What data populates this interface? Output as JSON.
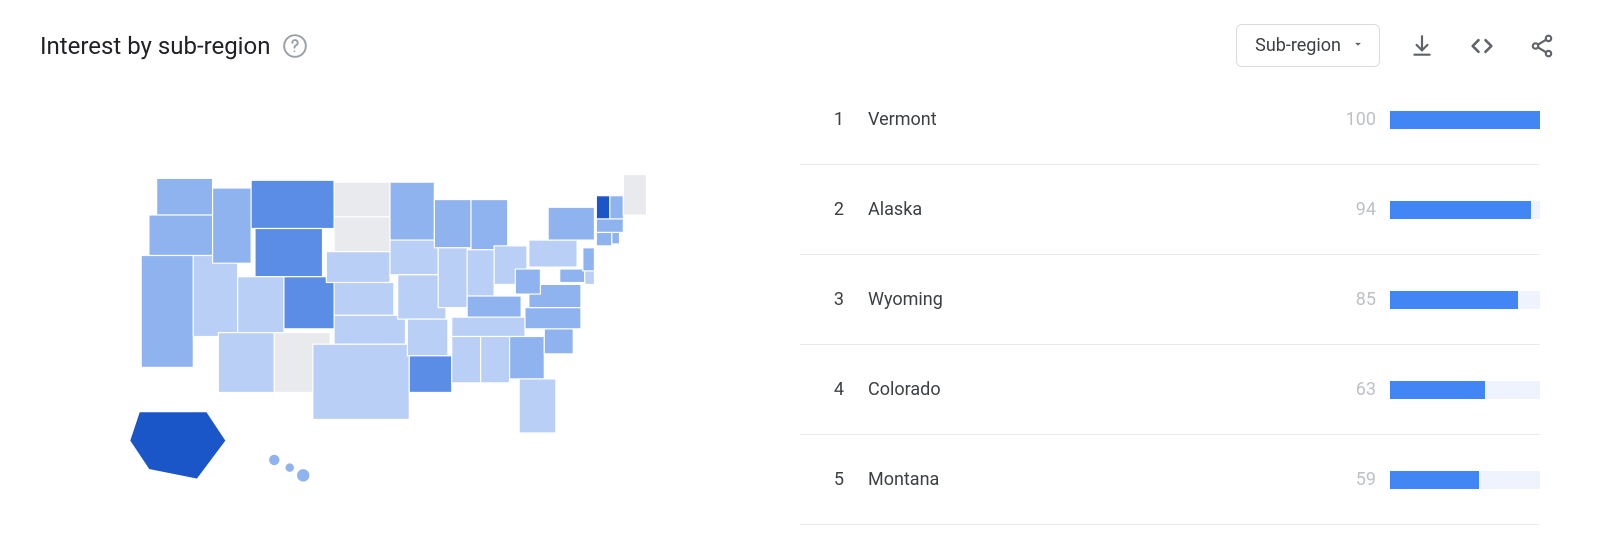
{
  "title": "Interest by sub-region",
  "dropdown": {
    "selected": "Sub-region"
  },
  "bar_max": 100,
  "colors": {
    "bar_fill": "#4285f4",
    "bar_track": "#eff3fd",
    "value_text": "#bdc1c6",
    "text": "#3c4043",
    "divider": "#e8eaed",
    "map_stroke": "#ffffff",
    "map_nodata": "#e8eaed",
    "map_base": "#9dbcf2"
  },
  "icons": {
    "help": "help-circle",
    "download": "download",
    "embed": "embed",
    "share": "share"
  },
  "list": [
    {
      "rank": 1,
      "name": "Vermont",
      "value": 100
    },
    {
      "rank": 2,
      "name": "Alaska",
      "value": 94
    },
    {
      "rank": 3,
      "name": "Wyoming",
      "value": 85
    },
    {
      "rank": 4,
      "name": "Colorado",
      "value": 63
    },
    {
      "rank": 5,
      "name": "Montana",
      "value": 59
    }
  ],
  "map": {
    "type": "choropleth",
    "region": "US states",
    "legend": "relative search interest 0-100",
    "states": {
      "WA": {
        "shade": "med"
      },
      "OR": {
        "shade": "med"
      },
      "CA": {
        "shade": "med"
      },
      "NV": {
        "shade": "light"
      },
      "ID": {
        "shade": "med"
      },
      "MT": {
        "shade": "dark"
      },
      "WY": {
        "shade": "dark"
      },
      "UT": {
        "shade": "light"
      },
      "CO": {
        "shade": "dark"
      },
      "AZ": {
        "shade": "light"
      },
      "NM": {
        "shade": "nodata"
      },
      "ND": {
        "shade": "nodata"
      },
      "SD": {
        "shade": "nodata"
      },
      "NE": {
        "shade": "light"
      },
      "KS": {
        "shade": "light"
      },
      "OK": {
        "shade": "light"
      },
      "TX": {
        "shade": "light"
      },
      "MN": {
        "shade": "med"
      },
      "IA": {
        "shade": "light"
      },
      "MO": {
        "shade": "light"
      },
      "AR": {
        "shade": "light"
      },
      "LA": {
        "shade": "dark"
      },
      "WI": {
        "shade": "med"
      },
      "IL": {
        "shade": "light"
      },
      "MI": {
        "shade": "med"
      },
      "IN": {
        "shade": "light"
      },
      "OH": {
        "shade": "light"
      },
      "KY": {
        "shade": "med"
      },
      "TN": {
        "shade": "light"
      },
      "MS": {
        "shade": "light"
      },
      "AL": {
        "shade": "light"
      },
      "GA": {
        "shade": "med"
      },
      "FL": {
        "shade": "light"
      },
      "SC": {
        "shade": "med"
      },
      "NC": {
        "shade": "med"
      },
      "VA": {
        "shade": "med"
      },
      "WV": {
        "shade": "med"
      },
      "MD": {
        "shade": "med"
      },
      "DE": {
        "shade": "light"
      },
      "PA": {
        "shade": "light"
      },
      "NJ": {
        "shade": "med"
      },
      "NY": {
        "shade": "med"
      },
      "CT": {
        "shade": "med"
      },
      "RI": {
        "shade": "med"
      },
      "MA": {
        "shade": "med"
      },
      "VT": {
        "shade": "darkest"
      },
      "NH": {
        "shade": "med"
      },
      "ME": {
        "shade": "nodata"
      },
      "AK": {
        "shade": "darkest"
      },
      "HI": {
        "shade": "med"
      }
    },
    "shade_colors": {
      "nodata": "#e8eaed",
      "light": "#b9cff5",
      "med": "#8fb3ee",
      "dark": "#5b8de6",
      "darkest": "#1a56c7"
    }
  }
}
